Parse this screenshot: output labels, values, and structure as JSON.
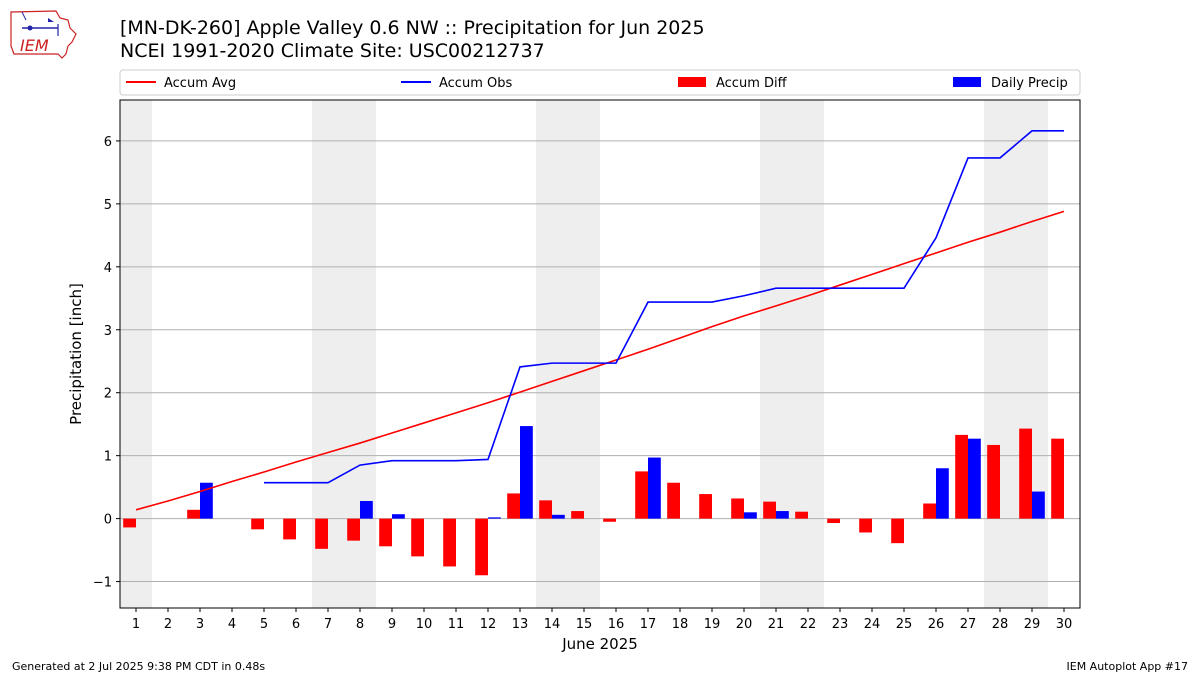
{
  "title_line1": "[MN-DK-260] Apple Valley 0.6 NW :: Precipitation for Jun 2025",
  "title_line2": "NCEI 1991-2020 Climate Site: USC00212737",
  "footer_left": "Generated at 2 Jul 2025 9:38 PM CDT in 0.48s",
  "footer_right": "IEM Autoplot App #17",
  "logo_text": "IEM",
  "colors": {
    "accum_avg": "#ff0000",
    "accum_obs": "#0000ff",
    "accum_diff": "#ff0000",
    "daily_precip": "#0000ff",
    "weekend_shade": "#eeeeee",
    "grid": "#b0b0b0"
  },
  "chart_data": {
    "type": "bar",
    "xlabel": "June 2025",
    "ylabel": "Precipitation [inch]",
    "ylim": [
      -1.42,
      6.65
    ],
    "yticks": [
      -1,
      0,
      1,
      2,
      3,
      4,
      5,
      6
    ],
    "ytick_labels": [
      "−1",
      "0",
      "1",
      "2",
      "3",
      "4",
      "5",
      "6"
    ],
    "categories": [
      "1",
      "2",
      "3",
      "4",
      "5",
      "6",
      "7",
      "8",
      "9",
      "10",
      "11",
      "12",
      "13",
      "14",
      "15",
      "16",
      "17",
      "18",
      "19",
      "20",
      "21",
      "22",
      "23",
      "24",
      "25",
      "26",
      "27",
      "28",
      "29",
      "30"
    ],
    "grid": "horizontal",
    "legend_position": "top",
    "weekend_shaded_days": [
      1,
      7,
      8,
      14,
      15,
      21,
      22,
      28,
      29
    ],
    "series": [
      {
        "name": "Accum Avg",
        "type": "line",
        "values": [
          0.14,
          0.28,
          0.43,
          0.59,
          0.74,
          0.9,
          1.05,
          1.2,
          1.36,
          1.52,
          1.68,
          1.84,
          2.01,
          2.18,
          2.35,
          2.52,
          2.69,
          2.87,
          3.05,
          3.22,
          3.38,
          3.54,
          3.71,
          3.88,
          4.05,
          4.22,
          4.39,
          4.55,
          4.72,
          4.88
        ]
      },
      {
        "name": "Accum Obs",
        "type": "line",
        "values": [
          null,
          null,
          null,
          null,
          0.57,
          0.57,
          0.57,
          0.85,
          0.92,
          0.92,
          0.92,
          0.94,
          2.41,
          2.47,
          2.47,
          2.47,
          3.44,
          3.44,
          3.44,
          3.54,
          3.66,
          3.66,
          3.66,
          3.66,
          3.66,
          4.46,
          5.73,
          5.73,
          6.16,
          6.16
        ]
      },
      {
        "name": "Accum Diff",
        "type": "bar",
        "values": [
          -0.14,
          null,
          0.14,
          null,
          -0.17,
          -0.33,
          -0.48,
          -0.35,
          -0.44,
          -0.6,
          -0.76,
          -0.9,
          0.4,
          0.29,
          0.12,
          -0.05,
          0.75,
          0.57,
          0.39,
          0.32,
          0.27,
          0.11,
          -0.07,
          -0.22,
          -0.39,
          0.24,
          1.33,
          1.17,
          1.43,
          1.27
        ]
      },
      {
        "name": "Daily Precip",
        "type": "bar",
        "values": [
          0,
          0,
          0.57,
          0,
          0,
          0,
          0,
          0.28,
          0.07,
          0,
          0,
          0.02,
          1.47,
          0.06,
          0,
          0,
          0.97,
          0,
          0,
          0.1,
          0.12,
          0,
          0,
          0,
          0,
          0.8,
          1.27,
          0,
          0.43,
          0
        ]
      }
    ]
  }
}
